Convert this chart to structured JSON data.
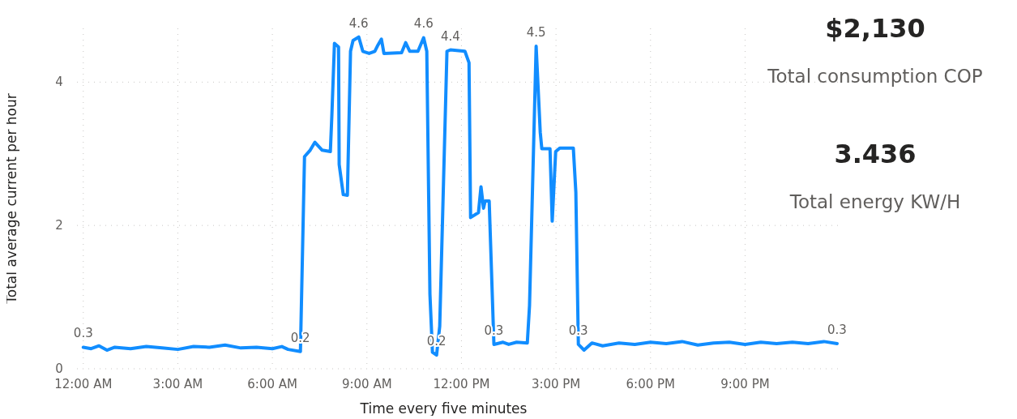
{
  "chart_data": [
    {
      "type": "line",
      "xlabel": "Time every five minutes",
      "ylabel": "Total average current per hour",
      "xlim": [
        -0.2,
        24.1
      ],
      "xticks": [
        {
          "value": 0,
          "label": "12:00 AM"
        },
        {
          "value": 3,
          "label": "3:00 AM"
        },
        {
          "value": 6,
          "label": "6:00 AM"
        },
        {
          "value": 9,
          "label": "9:00 AM"
        },
        {
          "value": 12,
          "label": "12:00 PM"
        },
        {
          "value": 15,
          "label": "3:00 PM"
        },
        {
          "value": 18,
          "label": "6:00 PM"
        },
        {
          "value": 21,
          "label": "9:00 PM"
        }
      ],
      "ylim": [
        0,
        4.75
      ],
      "yticks": [
        0,
        2,
        4
      ],
      "grid": true,
      "marker": "none",
      "line_style": "solid",
      "x": [
        0,
        0.25,
        0.5,
        0.75,
        1,
        1.5,
        2,
        2.5,
        3,
        3.5,
        4,
        4.5,
        5,
        5.5,
        6,
        6.3,
        6.5,
        6.89,
        7.02,
        7.2,
        7.35,
        7.58,
        7.84,
        7.89,
        7.97,
        8.1,
        8.12,
        8.25,
        8.38,
        8.48,
        8.56,
        8.74,
        8.87,
        9.07,
        9.25,
        9.33,
        9.46,
        9.54,
        10.1,
        10.23,
        10.36,
        10.62,
        10.8,
        10.9,
        11,
        11.08,
        11.21,
        11.31,
        11.54,
        11.65,
        12.11,
        12.24,
        12.29,
        12.54,
        12.62,
        12.7,
        12.75,
        12.88,
        13.03,
        13.32,
        13.5,
        13.75,
        14.09,
        14.16,
        14.37,
        14.5,
        14.55,
        14.81,
        14.88,
        14.99,
        15.12,
        15.55,
        15.63,
        15.71,
        15.89,
        16.14,
        16.48,
        17,
        17.5,
        18,
        18.5,
        19,
        19.5,
        20,
        20.5,
        21,
        21.5,
        22,
        22.5,
        23,
        23.5,
        23.92
      ],
      "series": [
        {
          "color": "#118dff",
          "values": [
            0.3,
            0.28,
            0.32,
            0.26,
            0.3,
            0.28,
            0.31,
            0.29,
            0.27,
            0.31,
            0.3,
            0.33,
            0.29,
            0.3,
            0.28,
            0.31,
            0.27,
            0.24,
            2.96,
            3.05,
            3.16,
            3.05,
            3.03,
            3.56,
            4.54,
            4.49,
            2.85,
            2.43,
            2.42,
            4.43,
            4.58,
            4.63,
            4.43,
            4.4,
            4.43,
            4.5,
            4.6,
            4.4,
            4.41,
            4.55,
            4.43,
            4.43,
            4.62,
            4.43,
            1.04,
            0.23,
            0.19,
            0.59,
            4.43,
            4.45,
            4.43,
            4.27,
            2.11,
            2.18,
            2.54,
            2.24,
            2.34,
            2.34,
            0.34,
            0.37,
            0.34,
            0.37,
            0.36,
            0.88,
            4.5,
            3.3,
            3.07,
            3.07,
            2.06,
            3.03,
            3.08,
            3.08,
            2.46,
            0.34,
            0.26,
            0.36,
            0.32,
            0.36,
            0.34,
            0.37,
            0.35,
            0.38,
            0.33,
            0.36,
            0.37,
            0.34,
            0.37,
            0.35,
            0.37,
            0.35,
            0.38,
            0.35
          ],
          "value_labels": [
            "0.3",
            null,
            null,
            null,
            null,
            null,
            null,
            null,
            null,
            null,
            null,
            null,
            null,
            null,
            null,
            null,
            null,
            "0.2",
            null,
            null,
            null,
            null,
            null,
            null,
            null,
            null,
            null,
            null,
            null,
            null,
            null,
            "4.6",
            null,
            null,
            null,
            null,
            null,
            null,
            null,
            null,
            null,
            null,
            "4.6",
            null,
            null,
            null,
            "0.2",
            null,
            null,
            "4.4",
            null,
            null,
            null,
            null,
            null,
            null,
            null,
            null,
            "0.3",
            null,
            null,
            null,
            null,
            null,
            "4.5",
            null,
            null,
            null,
            null,
            null,
            null,
            null,
            null,
            "0.3",
            null,
            null,
            null,
            null,
            null,
            null,
            null,
            null,
            null,
            null,
            null,
            null,
            null,
            null,
            null,
            null,
            null,
            "0.3"
          ]
        }
      ]
    },
    {
      "type": "other",
      "annotations": [
        "$2,130",
        "Total consumption COP",
        "3.436",
        "Total energy KW/H"
      ]
    }
  ]
}
